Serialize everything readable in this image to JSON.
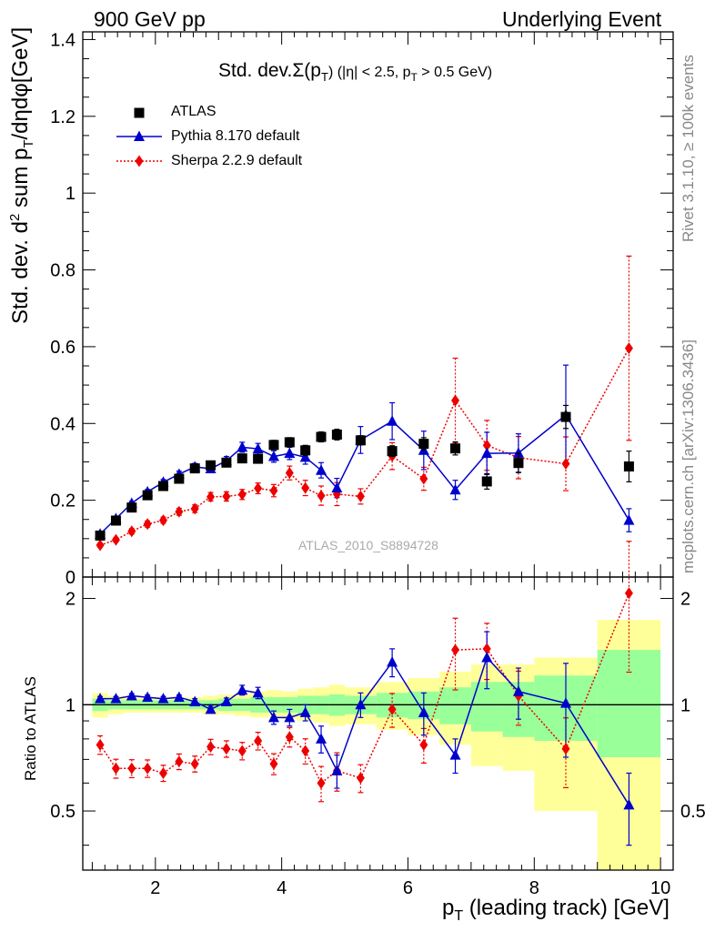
{
  "header": {
    "left": "900 GeV pp",
    "right": "Underlying Event"
  },
  "side_labels": {
    "rivet": "Rivet 3.1.10, ≥ 100k events",
    "mcplots": "mcplots.cern.ch [arXiv:1306.3436]"
  },
  "colors": {
    "atlas": "#000000",
    "pythia": "#0000cc",
    "sherpa": "#ee0000",
    "band_outer": "#ffff99",
    "band_inner": "#99ff99"
  },
  "chart_data": [
    {
      "type": "scatter",
      "panel": "main",
      "title": "Std. dev.Σ(p_T) (|η| < 2.5, p_T > 0.5 GeV)",
      "title_parts": {
        "main": "Std. dev.Σ(p",
        "sub1": "T",
        "rest1": ") (|η| < 2.5, p",
        "sub2": "T",
        "rest2": " > 0.5 GeV)"
      },
      "ylabel": "Std. dev. d² sum p_T/dηdφ[GeV]",
      "ylabel_parts": {
        "a": "Std. dev. d",
        "sup": "2",
        "b": " sum p",
        "sub": "T",
        "c": "/dηdφ[GeV]"
      },
      "watermark": "ATLAS_2010_S8894728",
      "xlim": [
        0.85,
        10.2
      ],
      "ylim": [
        0,
        1.42
      ],
      "yticks": [
        0,
        0.2,
        0.4,
        0.6,
        0.8,
        1,
        1.2,
        1.4
      ],
      "ytick_labels": [
        "0",
        "0.2",
        "0.4",
        "0.6",
        "0.8",
        "1",
        "1.2",
        "1.4"
      ],
      "legend_position": "top-left",
      "series": [
        {
          "name": "ATLAS",
          "style": "square",
          "x": [
            1.125,
            1.375,
            1.625,
            1.875,
            2.125,
            2.375,
            2.625,
            2.875,
            3.125,
            3.375,
            3.625,
            3.875,
            4.125,
            4.375,
            4.625,
            4.875,
            5.25,
            5.75,
            6.25,
            6.75,
            7.25,
            7.75,
            8.5,
            9.5
          ],
          "y": [
            0.108,
            0.147,
            0.181,
            0.213,
            0.237,
            0.256,
            0.283,
            0.291,
            0.298,
            0.309,
            0.308,
            0.344,
            0.351,
            0.33,
            0.365,
            0.371,
            0.356,
            0.328,
            0.347,
            0.335,
            0.249,
            0.297,
            0.417,
            0.288
          ],
          "err": [
            0.004,
            0.005,
            0.005,
            0.006,
            0.006,
            0.007,
            0.007,
            0.008,
            0.009,
            0.01,
            0.011,
            0.012,
            0.012,
            0.013,
            0.013,
            0.014,
            0.012,
            0.014,
            0.016,
            0.017,
            0.02,
            0.025,
            0.03,
            0.04
          ]
        },
        {
          "name": "Pythia 8.170 default",
          "style": "triangle",
          "x": [
            1.125,
            1.375,
            1.625,
            1.875,
            2.125,
            2.375,
            2.625,
            2.875,
            3.125,
            3.375,
            3.625,
            3.875,
            4.125,
            4.375,
            4.625,
            4.875,
            5.25,
            5.75,
            6.25,
            6.75,
            7.25,
            7.75,
            8.5,
            9.5
          ],
          "y": [
            0.112,
            0.152,
            0.192,
            0.222,
            0.247,
            0.268,
            0.287,
            0.282,
            0.303,
            0.338,
            0.334,
            0.314,
            0.322,
            0.312,
            0.278,
            0.232,
            0.357,
            0.406,
            0.33,
            0.227,
            0.322,
            0.323,
            0.422,
            0.148
          ],
          "err": [
            0.003,
            0.004,
            0.005,
            0.006,
            0.007,
            0.008,
            0.009,
            0.01,
            0.011,
            0.013,
            0.014,
            0.015,
            0.016,
            0.018,
            0.02,
            0.025,
            0.035,
            0.048,
            0.05,
            0.025,
            0.055,
            0.05,
            0.13,
            0.03
          ]
        },
        {
          "name": "Sherpa 2.2.9 default",
          "style": "diamond",
          "x": [
            1.125,
            1.375,
            1.625,
            1.875,
            2.125,
            2.375,
            2.625,
            2.875,
            3.125,
            3.375,
            3.625,
            3.875,
            4.125,
            4.375,
            4.625,
            4.875,
            5.25,
            5.75,
            6.25,
            6.75,
            7.25,
            7.75,
            8.5,
            9.5
          ],
          "y": [
            0.083,
            0.097,
            0.119,
            0.138,
            0.148,
            0.17,
            0.178,
            0.209,
            0.21,
            0.215,
            0.231,
            0.225,
            0.271,
            0.232,
            0.212,
            0.216,
            0.21,
            0.315,
            0.256,
            0.46,
            0.343,
            0.311,
            0.295,
            0.596
          ],
          "err": [
            0.005,
            0.006,
            0.007,
            0.008,
            0.008,
            0.009,
            0.01,
            0.011,
            0.012,
            0.013,
            0.014,
            0.016,
            0.018,
            0.02,
            0.025,
            0.03,
            0.02,
            0.035,
            0.03,
            0.11,
            0.065,
            0.055,
            0.07,
            0.24
          ]
        }
      ]
    },
    {
      "type": "scatter",
      "panel": "ratio",
      "ylabel": "Ratio to ATLAS",
      "xlabel": "p_T (leading track) [GeV]",
      "xlabel_parts": {
        "a": "p",
        "sub": "T",
        "b": " (leading track) [GeV]"
      },
      "xlim": [
        0.85,
        10.2
      ],
      "ylim": [
        0.34,
        2.3
      ],
      "yticks": [
        0.5,
        1,
        2
      ],
      "ytick_labels": [
        "0.5",
        "1",
        "2"
      ],
      "xticks": [
        2,
        4,
        6,
        8,
        10
      ],
      "xtick_labels": [
        "2",
        "4",
        "6",
        "8",
        "10"
      ],
      "reference_line": 1,
      "bands": {
        "edges": [
          1.0,
          1.25,
          1.5,
          1.75,
          2.0,
          2.25,
          2.5,
          2.75,
          3.0,
          3.25,
          3.5,
          3.75,
          4.0,
          4.25,
          4.5,
          4.75,
          5.0,
          5.5,
          6.0,
          6.5,
          7.0,
          7.5,
          8.0,
          9.0,
          10.0
        ],
        "outer_lo": [
          0.92,
          0.94,
          0.95,
          0.95,
          0.95,
          0.95,
          0.95,
          0.94,
          0.94,
          0.93,
          0.92,
          0.92,
          0.91,
          0.9,
          0.89,
          0.87,
          0.88,
          0.85,
          0.82,
          0.77,
          0.67,
          0.65,
          0.5,
          0.34
        ],
        "outer_hi": [
          1.08,
          1.06,
          1.05,
          1.05,
          1.05,
          1.05,
          1.05,
          1.06,
          1.07,
          1.07,
          1.09,
          1.1,
          1.09,
          1.11,
          1.12,
          1.14,
          1.12,
          1.16,
          1.19,
          1.24,
          1.3,
          1.3,
          1.36,
          1.74
        ],
        "inner_lo": [
          0.96,
          0.97,
          0.97,
          0.97,
          0.97,
          0.97,
          0.97,
          0.97,
          0.96,
          0.96,
          0.95,
          0.95,
          0.95,
          0.94,
          0.94,
          0.93,
          0.94,
          0.92,
          0.91,
          0.88,
          0.84,
          0.81,
          0.79,
          0.71
        ],
        "inner_hi": [
          1.04,
          1.03,
          1.03,
          1.03,
          1.03,
          1.03,
          1.03,
          1.03,
          1.04,
          1.04,
          1.05,
          1.05,
          1.05,
          1.06,
          1.06,
          1.07,
          1.06,
          1.08,
          1.09,
          1.12,
          1.16,
          1.16,
          1.21,
          1.43
        ]
      },
      "series": [
        {
          "name": "Pythia 8.170 default",
          "style": "triangle",
          "x": [
            1.125,
            1.375,
            1.625,
            1.875,
            2.125,
            2.375,
            2.625,
            2.875,
            3.125,
            3.375,
            3.625,
            3.875,
            4.125,
            4.375,
            4.625,
            4.875,
            5.25,
            5.75,
            6.25,
            6.75,
            7.25,
            7.75,
            8.5,
            9.5
          ],
          "y": [
            1.04,
            1.04,
            1.06,
            1.05,
            1.04,
            1.05,
            1.02,
            0.97,
            1.02,
            1.1,
            1.08,
            0.92,
            0.92,
            0.95,
            0.8,
            0.65,
            1.0,
            1.32,
            0.95,
            0.72,
            1.36,
            1.09,
            1.01,
            0.52
          ],
          "err": [
            0.015,
            0.015,
            0.015,
            0.015,
            0.015,
            0.015,
            0.02,
            0.02,
            0.025,
            0.035,
            0.04,
            0.04,
            0.05,
            0.05,
            0.07,
            0.07,
            0.08,
            0.12,
            0.13,
            0.08,
            0.25,
            0.18,
            0.3,
            0.12
          ]
        },
        {
          "name": "Sherpa 2.2.9 default",
          "style": "diamond",
          "x": [
            1.125,
            1.375,
            1.625,
            1.875,
            2.125,
            2.375,
            2.625,
            2.875,
            3.125,
            3.375,
            3.625,
            3.875,
            4.125,
            4.375,
            4.625,
            4.875,
            5.25,
            5.75,
            6.25,
            6.75,
            7.25,
            7.75,
            8.5,
            9.5
          ],
          "y": [
            0.77,
            0.66,
            0.66,
            0.66,
            0.64,
            0.69,
            0.68,
            0.76,
            0.75,
            0.74,
            0.79,
            0.68,
            0.81,
            0.74,
            0.6,
            0.65,
            0.62,
            0.97,
            0.77,
            1.43,
            1.44,
            1.06,
            0.75,
            2.07
          ]
        }
      ]
    }
  ]
}
